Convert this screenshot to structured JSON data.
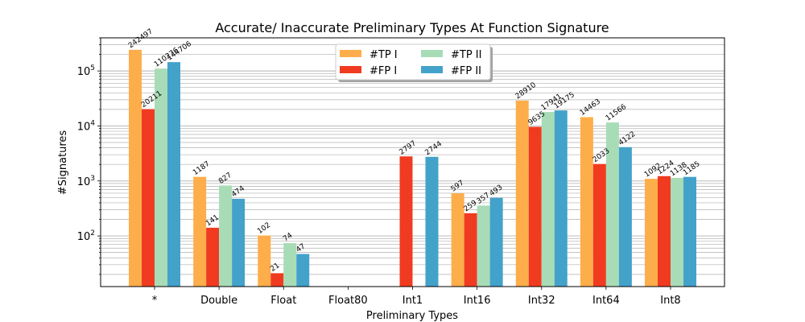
{
  "chart_data": {
    "type": "bar",
    "title": "Accurate/ Inaccurate Preliminary Types At Function Signature",
    "xlabel": "Preliminary Types",
    "ylabel": "#Signatures",
    "yscale": "log",
    "ylim": [
      12,
      400000
    ],
    "ytick_values": [
      100,
      1000,
      10000,
      100000
    ],
    "ytick_labels": [
      "10^2",
      "10^3",
      "10^4",
      "10^5"
    ],
    "grid": "horizontal major and minor",
    "legend_position": "top-center",
    "categories": [
      "*",
      "Double",
      "Float",
      "Float80",
      "Int1",
      "Int16",
      "Int32",
      "Int64",
      "Int8"
    ],
    "series": [
      {
        "name": "#TP I",
        "color": "#fdae4b",
        "values": [
          242497,
          1187,
          102,
          null,
          null,
          597,
          28910,
          14463,
          1092
        ]
      },
      {
        "name": "#FP I",
        "color": "#f03b20",
        "values": [
          20211,
          141,
          21,
          null,
          2797,
          259,
          9635,
          2033,
          1224
        ]
      },
      {
        "name": "#TP II",
        "color": "#a8dcb6",
        "values": [
          110276,
          827,
          74,
          null,
          null,
          357,
          17941,
          11566,
          1138
        ]
      },
      {
        "name": "#FP II",
        "color": "#43a2ca",
        "values": [
          144706,
          474,
          47,
          null,
          2744,
          493,
          19175,
          4122,
          1185
        ]
      }
    ]
  }
}
